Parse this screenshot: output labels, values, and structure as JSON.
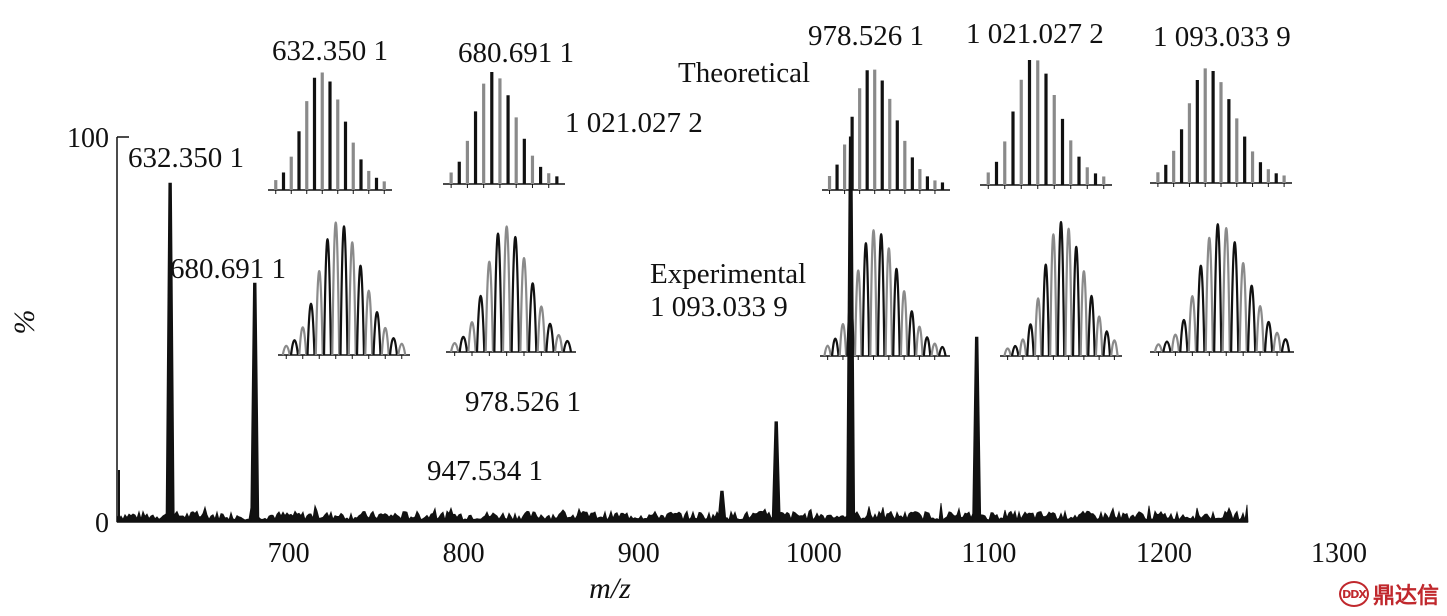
{
  "chart_data": {
    "type": "line",
    "xlabel": "m/z",
    "ylabel": "%",
    "xlim": [
      602,
      1248
    ],
    "ylim": [
      0,
      100
    ],
    "x_ticks": [
      "700",
      "800",
      "900",
      "1000",
      "1100",
      "1200",
      "1300"
    ],
    "y_ticks": [
      "0",
      "100"
    ],
    "grid": false,
    "peaks": [
      {
        "x": 632.35,
        "y": 88
      },
      {
        "x": 680.69,
        "y": 62
      },
      {
        "x": 947.53,
        "y": 8
      },
      {
        "x": 978.53,
        "y": 26
      },
      {
        "x": 1021.03,
        "y": 100
      },
      {
        "x": 1093.03,
        "y": 48
      }
    ],
    "peak_labels": [
      {
        "text": "632.350 1"
      },
      {
        "text": "680.691 1"
      },
      {
        "text": "947.534 1"
      },
      {
        "text": "978.526 1"
      },
      {
        "text": "1 021.027 2"
      },
      {
        "text": "Experimental"
      },
      {
        "text": "1 093.033 9"
      }
    ],
    "inset_labels": [
      {
        "text": "632.350 1"
      },
      {
        "text": "680.691 1"
      },
      {
        "text": "Theoretical"
      },
      {
        "text": "978.526 1"
      },
      {
        "text": "1 021.027 2"
      },
      {
        "text": "1 093.033 9"
      }
    ],
    "isotope_insets": {
      "theoretical": [
        {
          "label": "632.350 1",
          "n": 15,
          "peak": 0.42
        },
        {
          "label": "680.691 1",
          "n": 14,
          "peak": 0.4
        },
        {
          "label": "978.526 1",
          "n": 16,
          "peak": 0.38
        },
        {
          "label": "1 021.027 2",
          "n": 15,
          "peak": 0.4
        },
        {
          "label": "1 093.033 9",
          "n": 17,
          "peak": 0.4
        }
      ],
      "experimental": [
        {
          "label": "632.350 1",
          "n": 15,
          "peak": 0.45
        },
        {
          "label": "680.691 1",
          "n": 14,
          "peak": 0.45
        },
        {
          "label": "978.526 1",
          "n": 16,
          "peak": 0.42
        },
        {
          "label": "1 021.027 2",
          "n": 15,
          "peak": 0.5
        },
        {
          "label": "1 093.033 9",
          "n": 16,
          "peak": 0.48
        }
      ]
    }
  },
  "watermark": {
    "text": "鼎达信",
    "mark": "DDX"
  }
}
